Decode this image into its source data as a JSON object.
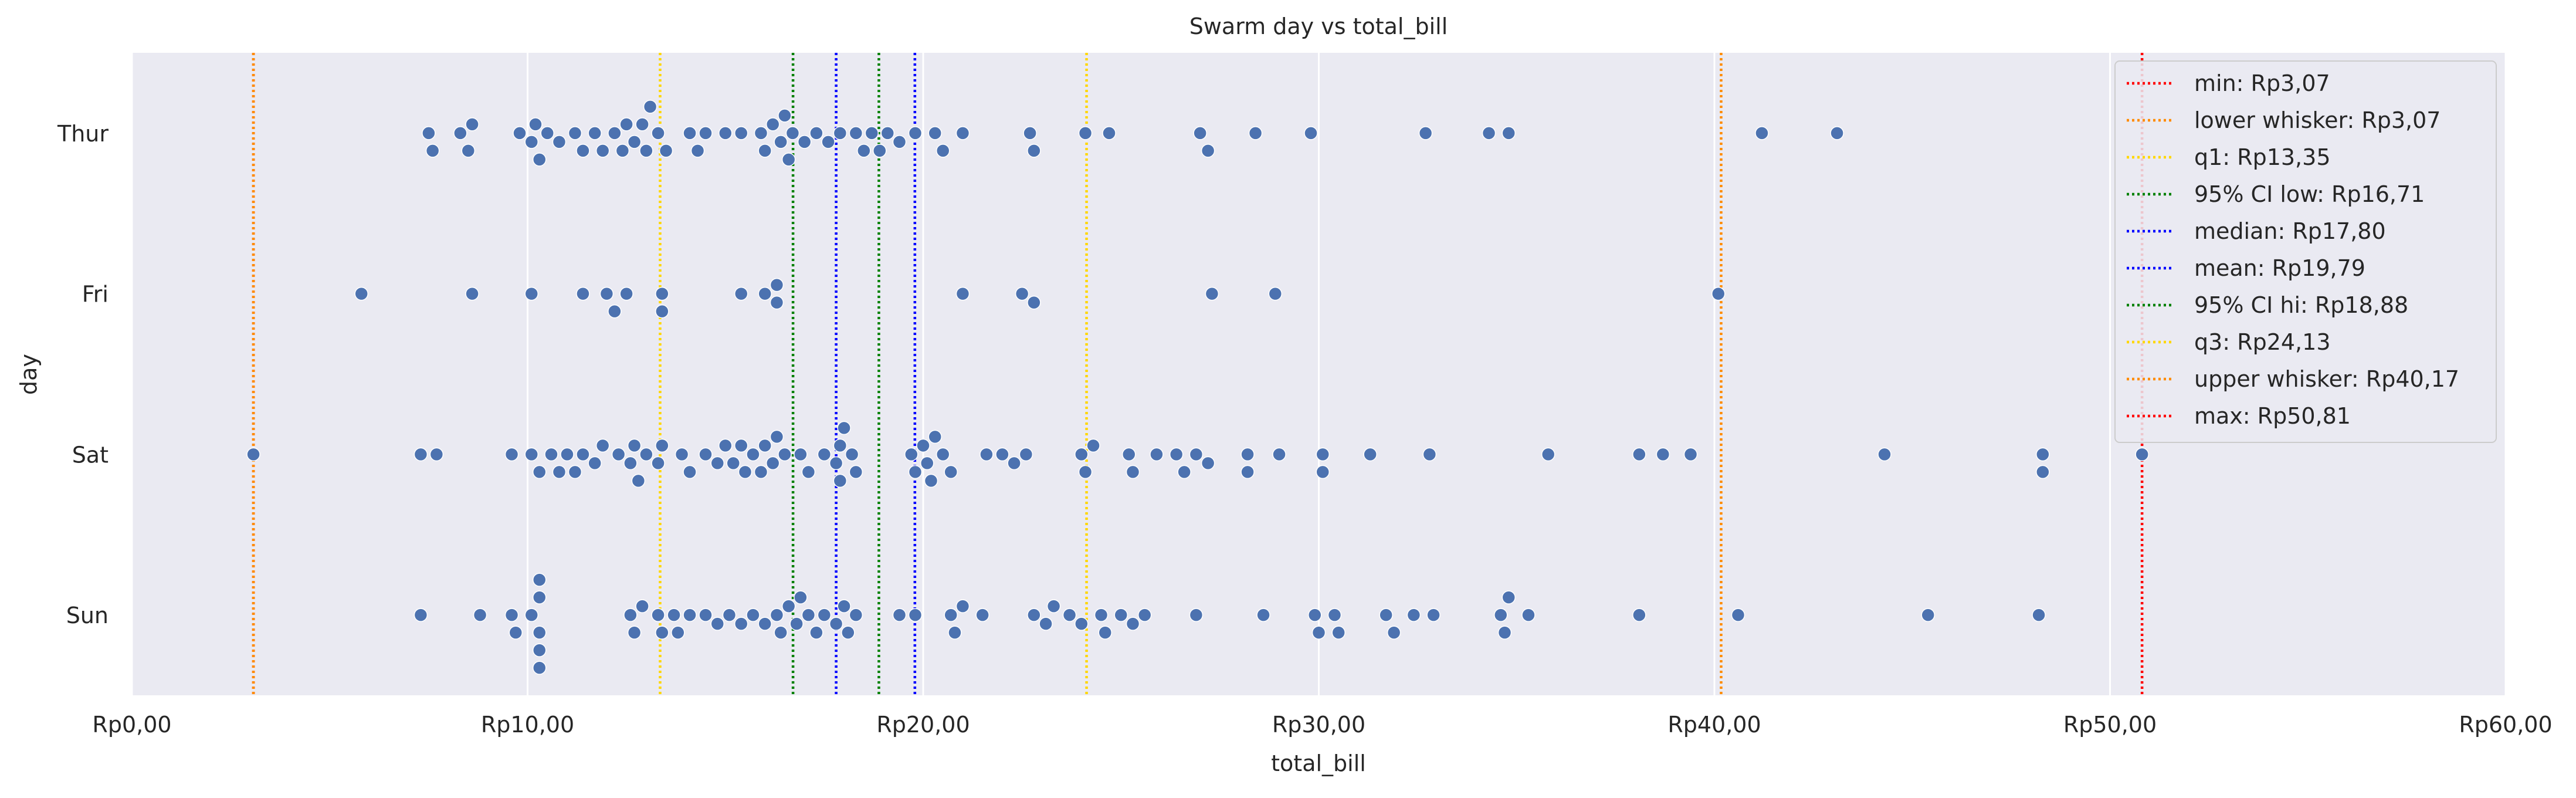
{
  "chart_data": {
    "type": "scatter",
    "subtype": "swarm",
    "title": "Swarm day vs total_bill",
    "xlabel": "total_bill",
    "ylabel": "day",
    "xlim": [
      0,
      60
    ],
    "x_ticks": [
      0,
      10,
      20,
      30,
      40,
      50,
      60
    ],
    "x_tick_labels": [
      "Rp0,00",
      "Rp10,00",
      "Rp20,00",
      "Rp30,00",
      "Rp40,00",
      "Rp50,00",
      "Rp60,00"
    ],
    "categories": [
      "Thur",
      "Fri",
      "Sat",
      "Sun"
    ],
    "grid": true,
    "legend_position": "top-right",
    "colors": {
      "background": "#eaeaf2",
      "grid": "#ffffff",
      "point": "#4c72b0",
      "point_edge": "#ffffff"
    },
    "series": [
      {
        "category": "Thur",
        "x": [
          7.5,
          7.6,
          8.3,
          8.5,
          8.6,
          9.8,
          10.1,
          10.2,
          10.3,
          10.5,
          10.8,
          11.2,
          11.4,
          11.7,
          11.9,
          12.2,
          12.4,
          12.5,
          12.7,
          12.9,
          13.0,
          13.1,
          13.3,
          13.5,
          14.1,
          14.3,
          14.5,
          15.0,
          15.4,
          15.9,
          16.0,
          16.2,
          16.4,
          16.5,
          16.6,
          16.7,
          17.0,
          17.3,
          17.6,
          17.9,
          18.3,
          18.5,
          18.7,
          18.9,
          19.1,
          19.4,
          19.8,
          20.3,
          20.5,
          21.0,
          22.7,
          22.8,
          24.1,
          24.7,
          27.0,
          27.2,
          28.4,
          29.8,
          32.7,
          34.3,
          34.8,
          41.2,
          43.1
        ]
      },
      {
        "category": "Fri",
        "x": [
          5.8,
          8.6,
          10.1,
          11.4,
          12.0,
          12.2,
          12.5,
          13.4,
          13.4,
          15.4,
          16.0,
          16.3,
          16.3,
          21.0,
          22.5,
          22.8,
          27.3,
          28.9,
          40.1
        ]
      },
      {
        "category": "Sat",
        "x": [
          3.07,
          7.3,
          7.7,
          9.6,
          10.1,
          10.3,
          10.6,
          10.8,
          11.0,
          11.2,
          11.4,
          11.7,
          11.9,
          12.3,
          12.6,
          12.7,
          12.8,
          13.0,
          13.3,
          13.4,
          13.9,
          14.1,
          14.5,
          14.8,
          15.0,
          15.2,
          15.4,
          15.5,
          15.7,
          15.9,
          16.0,
          16.2,
          16.3,
          16.5,
          16.9,
          17.1,
          17.5,
          17.8,
          17.9,
          17.9,
          18.0,
          18.2,
          18.3,
          19.7,
          19.8,
          20.0,
          20.1,
          20.2,
          20.3,
          20.5,
          20.7,
          21.6,
          22.0,
          22.3,
          22.6,
          24.0,
          24.1,
          24.3,
          25.2,
          25.3,
          25.9,
          26.4,
          26.6,
          26.9,
          27.2,
          28.2,
          28.2,
          29.0,
          30.1,
          30.1,
          31.3,
          32.8,
          35.8,
          38.1,
          38.7,
          39.4,
          44.3,
          48.3,
          48.3,
          50.81
        ]
      },
      {
        "category": "Sun",
        "x": [
          7.3,
          8.8,
          9.6,
          9.7,
          10.1,
          10.3,
          10.3,
          10.3,
          10.3,
          10.3,
          12.6,
          12.7,
          12.9,
          13.3,
          13.4,
          13.7,
          13.8,
          14.1,
          14.5,
          14.8,
          15.1,
          15.4,
          15.7,
          16.0,
          16.3,
          16.4,
          16.6,
          16.8,
          16.9,
          17.1,
          17.3,
          17.5,
          17.8,
          18.0,
          18.1,
          18.3,
          19.4,
          19.8,
          20.7,
          20.8,
          21.0,
          21.5,
          22.8,
          23.1,
          23.3,
          23.7,
          24.0,
          24.5,
          24.6,
          25.0,
          25.3,
          25.6,
          26.9,
          28.6,
          29.9,
          30.0,
          30.4,
          30.5,
          31.7,
          31.9,
          32.4,
          32.9,
          34.6,
          34.7,
          34.8,
          35.3,
          38.1,
          40.6,
          45.4,
          48.2
        ]
      }
    ],
    "reference_lines": [
      {
        "label": "min: Rp3,07",
        "value": 3.07,
        "color": "#ff0000"
      },
      {
        "label": "lower whisker: Rp3,07",
        "value": 3.07,
        "color": "#ff8c00"
      },
      {
        "label": "q1: Rp13,35",
        "value": 13.35,
        "color": "#ffd700"
      },
      {
        "label": "95% CI low: Rp16,71",
        "value": 16.71,
        "color": "#008000"
      },
      {
        "label": "median: Rp17,80",
        "value": 17.8,
        "color": "#0000ff"
      },
      {
        "label": "mean: Rp19,79",
        "value": 19.79,
        "color": "#0000ff"
      },
      {
        "label": "95% CI hi: Rp18,88",
        "value": 18.88,
        "color": "#008000"
      },
      {
        "label": "q3: Rp24,13",
        "value": 24.13,
        "color": "#ffd700"
      },
      {
        "label": "upper whisker: Rp40,17",
        "value": 40.17,
        "color": "#ff8c00"
      },
      {
        "label": "max: Rp50,81",
        "value": 50.81,
        "color": "#ff0000"
      }
    ]
  }
}
